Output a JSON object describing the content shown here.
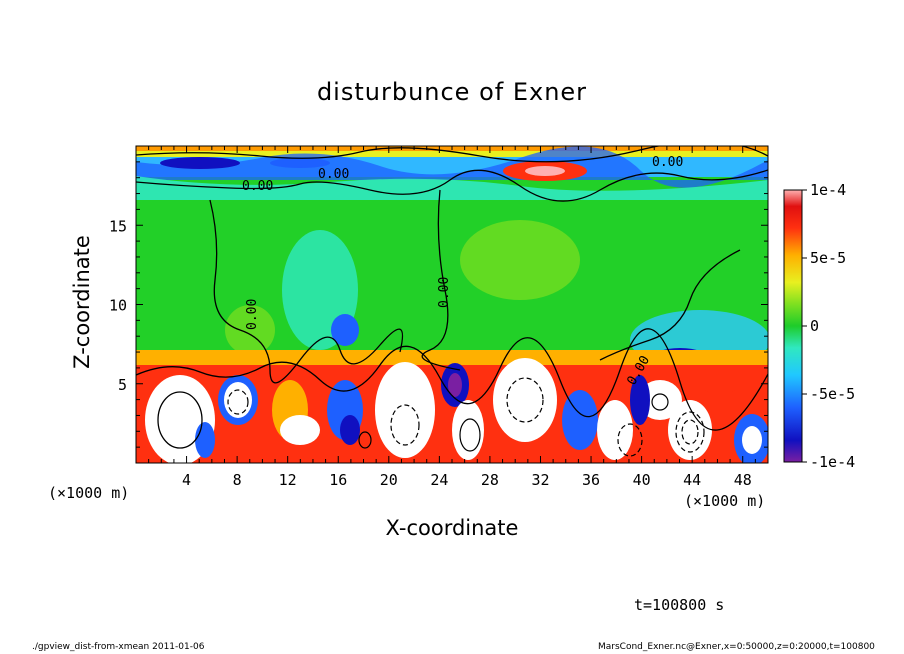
{
  "chart_data": {
    "type": "heatmap",
    "title": "disturbunce of Exner",
    "xlabel": "X-coordinate",
    "ylabel": "Z-coordinate",
    "x_unit": "(×1000 m)",
    "y_unit": "(×1000 m)",
    "xlim": [
      0,
      50
    ],
    "ylim": [
      0,
      20
    ],
    "x_ticks": [
      "4",
      "8",
      "12",
      "16",
      "20",
      "24",
      "28",
      "32",
      "36",
      "40",
      "44",
      "48"
    ],
    "y_ticks": [
      "5",
      "10",
      "15"
    ],
    "colorbar": {
      "ticks": [
        "1e-4",
        "5e-5",
        "0",
        "-5e-5",
        "-1e-4"
      ],
      "range": [
        -0.0001,
        0.0001
      ]
    },
    "contour_labels": [
      "0.00",
      "0.00",
      "0.00",
      "0.00",
      "0.00",
      "0.00"
    ],
    "colors": {
      "strong_positive": "#ffffff",
      "positive": "#ff0000",
      "weak_positive": "#ffcc00",
      "neutral": "#00cc00",
      "weak_negative": "#00ffff",
      "negative": "#0000ff",
      "strong_negative": "#800080"
    }
  },
  "time_label": "t=100800 s",
  "footer": {
    "left": "./gpview_dist-from-xmean  2011-01-06",
    "right": "MarsCond_Exner.nc@Exner,x=0:50000,z=0:20000,t=100800"
  }
}
